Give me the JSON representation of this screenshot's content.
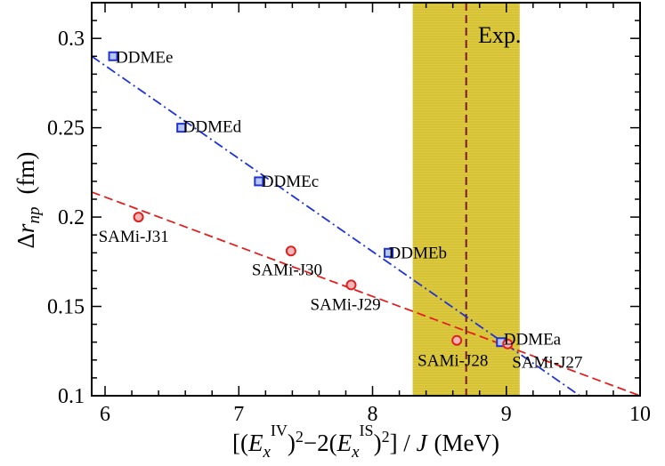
{
  "chart_data": {
    "type": "scatter",
    "xlabel": "[(E_x^IV)^2 − 2(E_x^IS)^2] / J (MeV)",
    "ylabel": "Δr_np (fm)",
    "xlim": [
      5.9,
      10
    ],
    "ylim": [
      0.1,
      0.32
    ],
    "x_ticks": [
      6,
      7,
      8,
      9,
      10
    ],
    "y_ticks": [
      0.1,
      0.15,
      0.2,
      0.25,
      0.3
    ],
    "x_tick_labels": [
      "6",
      "7",
      "8",
      "9",
      "10"
    ],
    "y_tick_labels": [
      "0.1",
      "0.15",
      "0.2",
      "0.25",
      "0.3"
    ],
    "experiment": {
      "label": "Exp.",
      "value": 8.7,
      "band": [
        8.3,
        9.1
      ],
      "band_color": "#d9c21c",
      "line_color": "#7a1a1a"
    },
    "series": [
      {
        "name": "DDME",
        "marker": "square",
        "color": "#1f33d6",
        "line_style": "dash-dot",
        "fit": {
          "x": [
            5.9,
            9.55
          ],
          "y": [
            0.29,
            0.1
          ]
        },
        "points": [
          {
            "label": "DDMEe",
            "x": 6.06,
            "y": 0.29
          },
          {
            "label": "DDMEd",
            "x": 6.57,
            "y": 0.25
          },
          {
            "label": "DDMEc",
            "x": 7.15,
            "y": 0.22
          },
          {
            "label": "DDMEb",
            "x": 8.12,
            "y": 0.18
          },
          {
            "label": "DDMEa",
            "x": 8.96,
            "y": 0.13
          }
        ]
      },
      {
        "name": "SAMi",
        "marker": "circle",
        "color": "#e02020",
        "line_style": "dashed",
        "fit": {
          "x": [
            5.9,
            10
          ],
          "y": [
            0.214,
            0.1
          ]
        },
        "points": [
          {
            "label": "SAMi-J31",
            "x": 6.25,
            "y": 0.2
          },
          {
            "label": "SAMi-J30",
            "x": 7.39,
            "y": 0.181
          },
          {
            "label": "SAMi-J29",
            "x": 7.84,
            "y": 0.162
          },
          {
            "label": "SAMi-J28",
            "x": 8.63,
            "y": 0.131
          },
          {
            "label": "SAMi-J27",
            "x": 9.01,
            "y": 0.129
          }
        ]
      }
    ]
  }
}
